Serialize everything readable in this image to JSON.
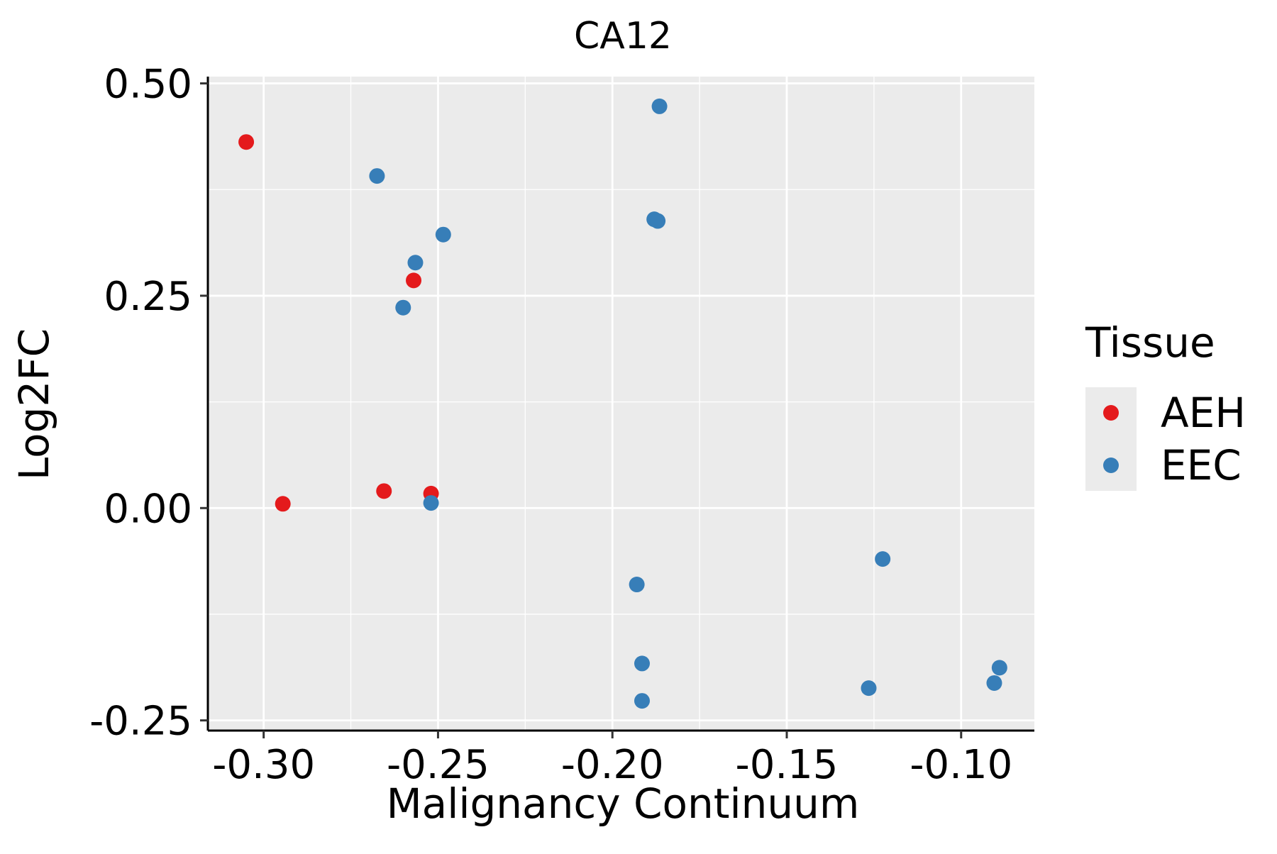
{
  "chart_data": {
    "type": "scatter",
    "title": "CA12",
    "xlabel": "Malignancy Continuum",
    "ylabel": "Log2FC",
    "xlim": [
      -0.316,
      -0.079
    ],
    "ylim": [
      -0.262,
      0.508
    ],
    "x_ticks": [
      -0.3,
      -0.25,
      -0.2,
      -0.15,
      -0.1
    ],
    "x_tick_labels": [
      "-0.30",
      "-0.25",
      "-0.20",
      "-0.15",
      "-0.10"
    ],
    "y_ticks": [
      -0.25,
      0.0,
      0.25,
      0.5
    ],
    "y_tick_labels": [
      "-0.25",
      "0.00",
      "0.25",
      "0.50"
    ],
    "grid": true,
    "legend_position": "right",
    "legend": {
      "title": "Tissue",
      "entries": [
        "AEH",
        "EEC"
      ]
    },
    "series": [
      {
        "name": "AEH",
        "color": "#E41A1C",
        "points": [
          {
            "x": -0.305,
            "y": 0.431
          },
          {
            "x": -0.2945,
            "y": 0.005
          },
          {
            "x": -0.2655,
            "y": 0.02
          },
          {
            "x": -0.257,
            "y": 0.268
          },
          {
            "x": -0.252,
            "y": 0.017
          }
        ]
      },
      {
        "name": "EEC",
        "color": "#377EB8",
        "points": [
          {
            "x": -0.2675,
            "y": 0.391
          },
          {
            "x": -0.2565,
            "y": 0.289
          },
          {
            "x": -0.26,
            "y": 0.236
          },
          {
            "x": -0.2485,
            "y": 0.322
          },
          {
            "x": -0.252,
            "y": 0.006
          },
          {
            "x": -0.1865,
            "y": 0.473
          },
          {
            "x": -0.188,
            "y": 0.34
          },
          {
            "x": -0.187,
            "y": 0.338
          },
          {
            "x": -0.193,
            "y": -0.09
          },
          {
            "x": -0.1915,
            "y": -0.183
          },
          {
            "x": -0.1915,
            "y": -0.227
          },
          {
            "x": -0.1225,
            "y": -0.06
          },
          {
            "x": -0.1265,
            "y": -0.212
          },
          {
            "x": -0.089,
            "y": -0.188
          },
          {
            "x": -0.0905,
            "y": -0.206
          }
        ]
      }
    ]
  }
}
